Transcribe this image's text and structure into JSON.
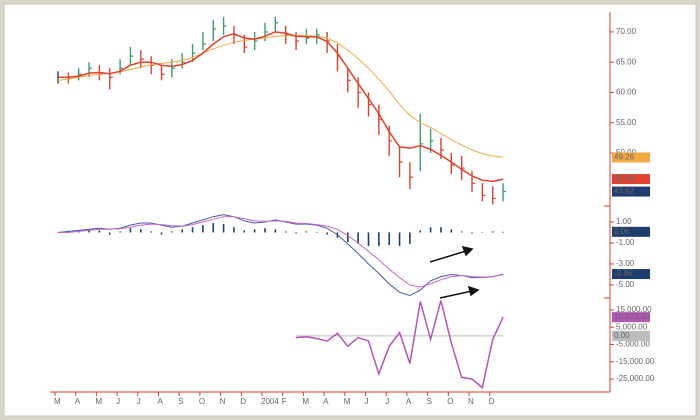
{
  "chart_data": [
    {
      "type": "ohlc",
      "high": [
        63.5,
        63.3,
        64,
        65,
        64.5,
        64,
        65.5,
        67.5,
        67,
        66,
        64.5,
        65.5,
        66.5,
        68,
        70,
        72,
        72.5,
        71,
        69.5,
        70,
        71.5,
        72.5,
        71,
        70,
        70.5,
        70.5,
        70,
        68,
        64,
        62.5,
        60,
        58,
        54.5,
        51,
        48.5,
        56.5,
        54,
        52.5,
        50,
        49.5,
        47,
        45,
        44.5,
        45
      ],
      "low": [
        61.5,
        61.5,
        62,
        62.5,
        62,
        60.5,
        63,
        64.5,
        64,
        63,
        62,
        62.5,
        64,
        65,
        67,
        68.5,
        69.5,
        68,
        66.5,
        67,
        68.5,
        70,
        68,
        67,
        68,
        68,
        66.5,
        63.5,
        60,
        57.5,
        56,
        53,
        49.5,
        46,
        44,
        47,
        50,
        49,
        46.5,
        45.5,
        43.5,
        42,
        41.5,
        42
      ],
      "close": [
        62.5,
        62.3,
        63,
        64,
        63,
        62.5,
        64,
        66,
        65.5,
        64.5,
        63,
        64,
        65,
        66.5,
        68,
        70.5,
        71,
        69.5,
        67.5,
        68.5,
        70,
        71.5,
        69.5,
        68.5,
        69,
        69.5,
        68.5,
        66,
        62,
        60,
        58,
        55.5,
        52,
        48.5,
        46,
        51.5,
        52,
        50.5,
        48,
        47.5,
        45,
        43,
        42.5,
        43.62
      ],
      "color": "#1f3c6e",
      "up_color": "#3f9b6c",
      "down_color": "#d8432e",
      "overlays": [
        {
          "color": "#f2aa45",
          "values": [
            62,
            62.2,
            62.5,
            62.8,
            63,
            63.2,
            63.4,
            63.8,
            64.2,
            64.6,
            64.8,
            65,
            65.3,
            65.8,
            66.5,
            67.2,
            67.8,
            68.3,
            68.6,
            68.8,
            69,
            69.3,
            69.4,
            69.4,
            69.4,
            69.3,
            69,
            68.2,
            67,
            65.6,
            64,
            62.2,
            60.2,
            58,
            56.2,
            55,
            54.2,
            53.2,
            52.2,
            51.3,
            50.5,
            49.9,
            49.5,
            49.26
          ]
        },
        {
          "color": "#e0422e",
          "values": [
            62.5,
            62.5,
            62.7,
            63.2,
            63.3,
            63.1,
            63.5,
            64.5,
            65,
            65,
            64.5,
            64.3,
            64.6,
            65.3,
            66.5,
            68,
            69.2,
            69.7,
            69,
            68.8,
            69.3,
            70,
            69.8,
            69.3,
            69.2,
            69.2,
            68.4,
            66.5,
            64,
            61.5,
            59,
            56.5,
            53.5,
            51,
            50.8,
            51.2,
            50.6,
            49.6,
            48.5,
            47.3,
            46.2,
            45.5,
            45.3,
            45.68
          ]
        }
      ],
      "ylim": [
        41.4,
        72.8
      ],
      "yticks": [
        {
          "value": 70,
          "label": "70.00"
        },
        {
          "value": 65,
          "label": "65.00"
        },
        {
          "value": 60,
          "label": "60.00"
        },
        {
          "value": 55,
          "label": "55.00"
        },
        {
          "value": 50,
          "label": "50.00"
        }
      ]
    },
    {
      "type": "macd",
      "histogram": {
        "color": "#1f3c6e",
        "values": [
          0.05,
          0.1,
          0.2,
          0.3,
          0.2,
          -0.2,
          0.1,
          0.4,
          0.3,
          0.1,
          -0.2,
          0.1,
          0.3,
          0.5,
          0.7,
          0.9,
          0.8,
          0.5,
          0.2,
          0.3,
          0.4,
          0.3,
          0.1,
          -0.1,
          0.1,
          0.05,
          -0.2,
          -0.5,
          -0.9,
          -1.1,
          -1.3,
          -1.3,
          -1.2,
          -1.3,
          -1.1,
          0.2,
          0.5,
          0.5,
          0.3,
          0.1,
          -0.1,
          0.05,
          0.1,
          0.06
        ]
      },
      "lines": [
        {
          "color": "#4a5aa8",
          "values": [
            0,
            0.1,
            0.2,
            0.3,
            0.4,
            0.3,
            0.4,
            0.7,
            0.9,
            0.9,
            0.7,
            0.5,
            0.6,
            0.9,
            1.2,
            1.5,
            1.7,
            1.5,
            1.1,
            0.9,
            1.0,
            1.2,
            1.0,
            0.8,
            0.8,
            0.7,
            0.4,
            -0.2,
            -1.1,
            -2,
            -3,
            -3.9,
            -4.9,
            -5.7,
            -6.0,
            -5.5,
            -4.6,
            -4.2,
            -4,
            -4.1,
            -4.3,
            -4.3,
            -4.2,
            -3.96
          ]
        },
        {
          "color": "#c468c4",
          "values": [
            0,
            0,
            0.1,
            0.2,
            0.3,
            0.3,
            0.35,
            0.5,
            0.7,
            0.8,
            0.75,
            0.65,
            0.6,
            0.75,
            1.0,
            1.25,
            1.5,
            1.5,
            1.3,
            1.1,
            1.05,
            1.1,
            1.05,
            0.9,
            0.85,
            0.75,
            0.6,
            0.3,
            -0.3,
            -1,
            -1.8,
            -2.6,
            -3.5,
            -4.3,
            -5,
            -5.2,
            -4.9,
            -4.5,
            -4.2,
            -4.1,
            -4.2,
            -4.25,
            -4.2,
            -4.0
          ]
        }
      ],
      "ylim": [
        -6.05,
        2.33
      ],
      "yticks": [
        {
          "value": 1,
          "label": "1.00"
        },
        {
          "value": -1,
          "label": "-1.00"
        },
        {
          "value": -3,
          "label": "-3.00"
        },
        {
          "value": -5,
          "label": "-5.00"
        }
      ]
    },
    {
      "type": "line",
      "color": "#b455b8",
      "values": [
        null,
        null,
        null,
        null,
        null,
        null,
        null,
        null,
        null,
        null,
        null,
        null,
        null,
        null,
        null,
        null,
        null,
        null,
        null,
        null,
        null,
        null,
        null,
        -1000,
        -500,
        -1500,
        -3000,
        1500,
        -6000,
        -1000,
        -3000,
        -22000,
        -6000,
        2000,
        -16000,
        20000,
        -2000,
        20500,
        -4000,
        -24000,
        -25000,
        -30000,
        -2000,
        10873.5
      ],
      "value_labels": [
        null,
        null,
        null,
        null,
        null,
        null,
        null,
        null,
        null,
        null,
        null,
        null,
        null,
        null,
        null,
        null,
        null,
        null,
        null,
        null,
        null,
        null,
        null,
        null,
        null,
        null,
        null,
        null,
        null,
        null,
        null,
        null,
        null,
        null,
        null,
        null,
        null,
        null,
        null,
        null,
        null,
        null,
        null,
        "10,873.50"
      ],
      "reference_line": {
        "value": 0,
        "label": "0.00",
        "color": "#bdbdbd"
      },
      "categories": [
        "M",
        null,
        "A",
        null,
        "M",
        null,
        "J",
        null,
        "J",
        null,
        "A",
        null,
        "S",
        null,
        "O",
        null,
        "N",
        null,
        "D",
        null,
        "2004",
        null,
        "F",
        null,
        "M",
        null,
        "A",
        null,
        "M",
        null,
        "J",
        null,
        "J",
        null,
        "A",
        null,
        "S",
        null,
        "O",
        null,
        "N",
        null,
        "D",
        null
      ],
      "ylim": [
        -32500,
        20800
      ],
      "yticks": [
        {
          "value": 15000,
          "label": "15,000.00"
        },
        {
          "value": 5000,
          "label": "5,000.00"
        },
        {
          "value": -5000,
          "label": "-5,000.00"
        },
        {
          "value": -15000,
          "label": "-15,000.00"
        },
        {
          "value": -25000,
          "label": "-25,000.00"
        }
      ]
    }
  ]
}
